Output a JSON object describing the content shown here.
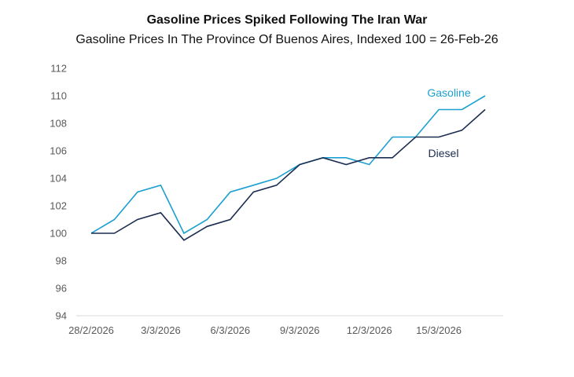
{
  "chart_data": {
    "type": "line",
    "title": "Gasoline Prices Spiked Following The Iran War",
    "subtitle": "Gasoline Prices In The Province Of Buenos Aires, Indexed 100 = 26-Feb-26",
    "xlabel": "",
    "ylabel": "",
    "ylim": [
      94,
      112
    ],
    "yticks": [
      "112",
      "110",
      "108",
      "106",
      "104",
      "102",
      "100",
      "98",
      "96",
      "94"
    ],
    "xtick_labels": [
      "28/2/2026",
      "3/3/2026",
      "6/3/2026",
      "9/3/2026",
      "12/3/2026",
      "15/3/2026"
    ],
    "xtick_indices": [
      0,
      3,
      6,
      9,
      12,
      15
    ],
    "x": [
      "28/2/2026",
      "1/3/2026",
      "2/3/2026",
      "3/3/2026",
      "4/3/2026",
      "5/3/2026",
      "6/3/2026",
      "7/3/2026",
      "8/3/2026",
      "9/3/2026",
      "10/3/2026",
      "11/3/2026",
      "12/3/2026",
      "13/3/2026",
      "14/3/2026",
      "15/3/2026",
      "16/3/2026",
      "17/3/2026"
    ],
    "grid": false,
    "series": [
      {
        "name": "Gasoline",
        "color": "#1a9fd0",
        "values": [
          100,
          101,
          103,
          103.5,
          100,
          101,
          103,
          103.5,
          104,
          105,
          105.5,
          105.5,
          105,
          107,
          107,
          109,
          109,
          110
        ]
      },
      {
        "name": "Diesel",
        "color": "#1b2d50",
        "values": [
          100,
          100,
          101,
          101.5,
          99.5,
          100.5,
          101,
          103,
          103.5,
          105,
          105.5,
          105,
          105.5,
          105.5,
          107,
          107,
          107.5,
          109
        ]
      }
    ]
  }
}
